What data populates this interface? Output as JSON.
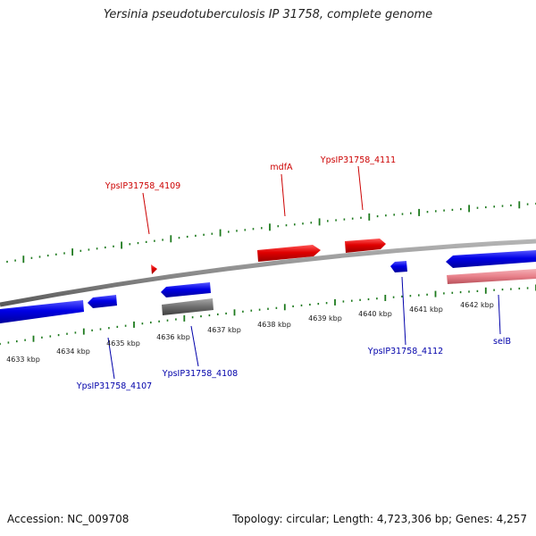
{
  "title": "Yersinia pseudotuberculosis IP 31758, complete genome",
  "footer": {
    "accession": "Accession: NC_009708",
    "topology": "Topology: circular; Length: 4,723,306 bp; Genes: 4,257"
  },
  "colors": {
    "forward_gene": "#e00000",
    "reverse_gene": "#0000e6",
    "pseudo_gene_light_red": "#e8808a",
    "other_feature_gray": "#6e6e6e",
    "ticks": "#1e7a1e",
    "backbone": "#8c8c8c",
    "label_red": "#cc0000",
    "label_blue": "#0000aa"
  },
  "scale_labels": [
    "4633 kbp",
    "4634 kbp",
    "4635 kbp",
    "4636 kbp",
    "4637 kbp",
    "4638 kbp",
    "4639 kbp",
    "4640 kbp",
    "4641 kbp",
    "4642 kbp"
  ],
  "forward_labels": [
    "YpsIP31758_4109",
    "mdfA",
    "YpsIP31758_4111"
  ],
  "reverse_labels": [
    "YpsIP31758_4107",
    "YpsIP31758_4108",
    "YpsIP31758_4112",
    "selB"
  ]
}
